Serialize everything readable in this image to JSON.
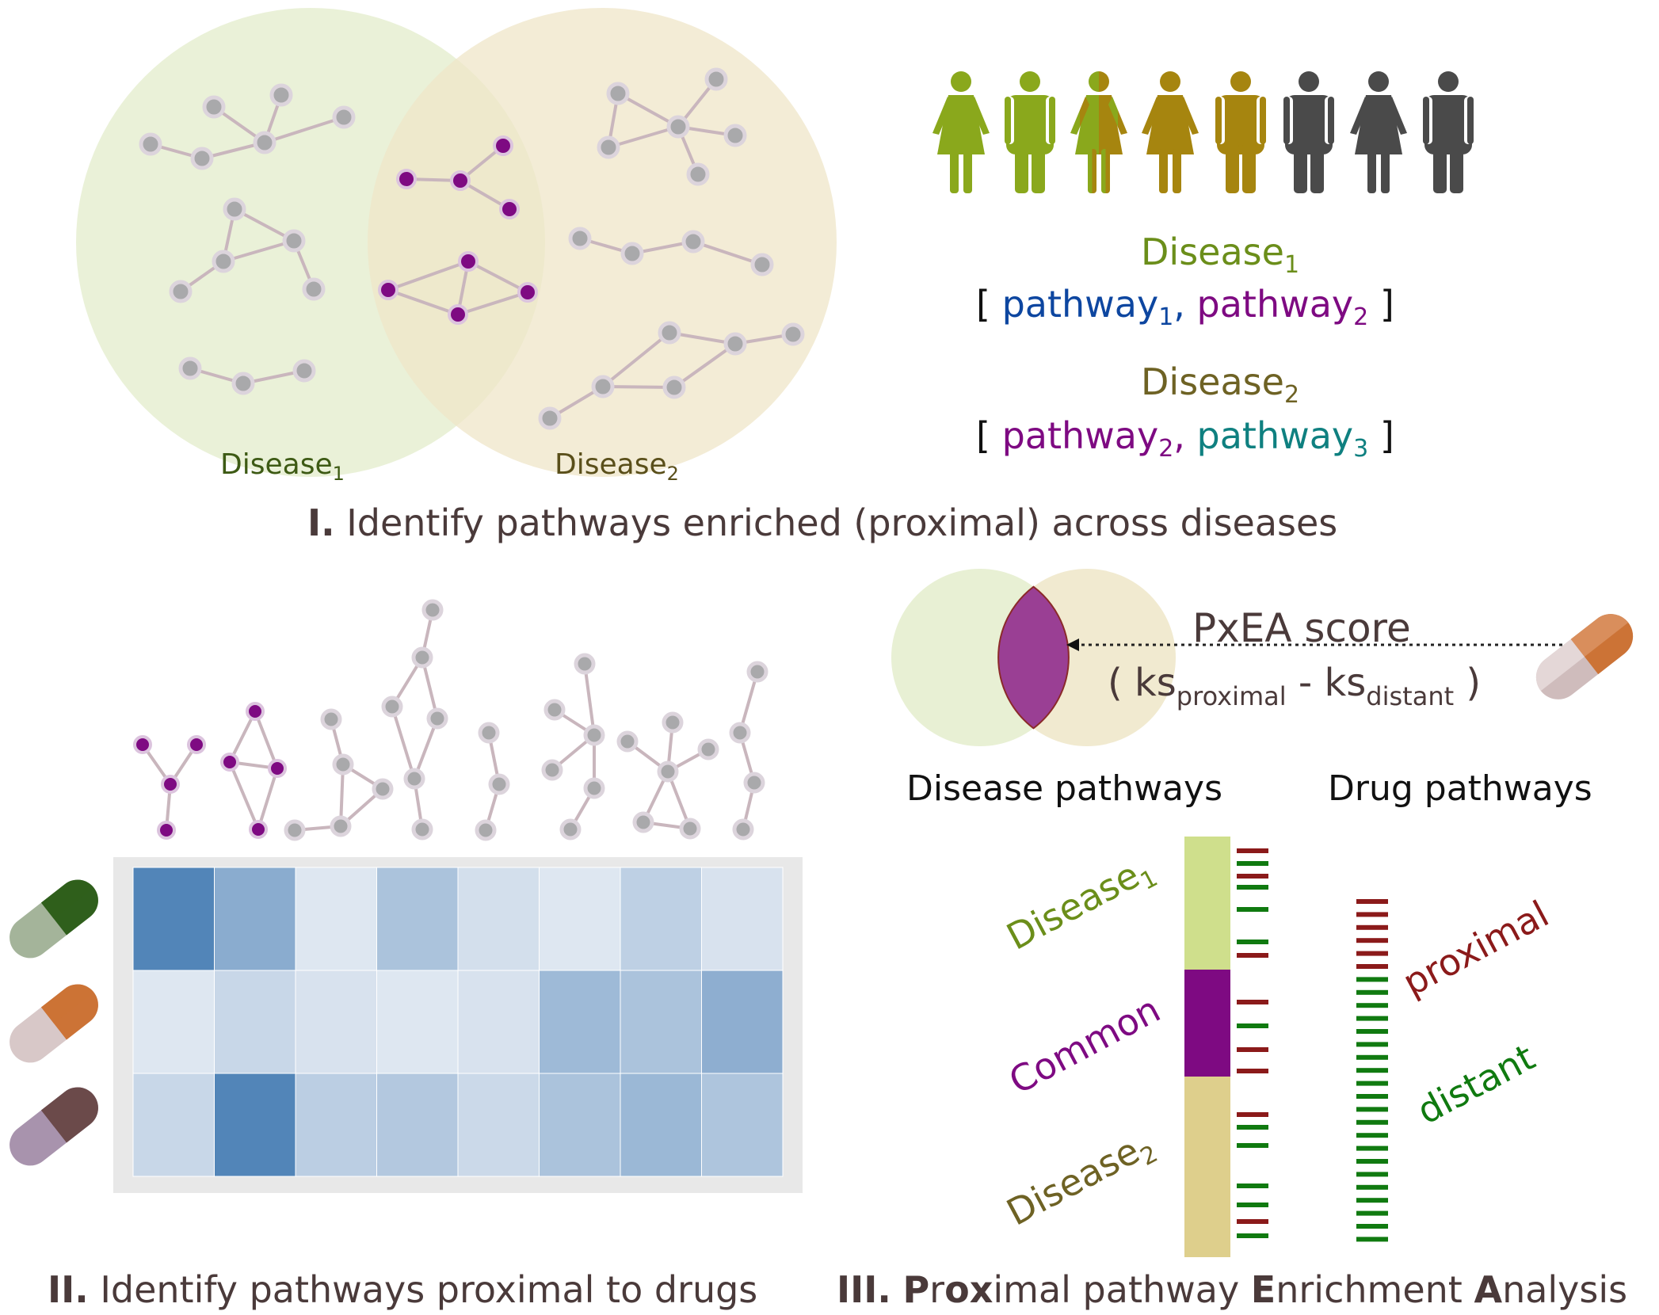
{
  "panel1": {
    "venn_left_label_main": "Disease",
    "venn_left_label_sub": "1",
    "venn_right_label_main": "Disease",
    "venn_right_label_sub": "2",
    "disease1_name": "Disease",
    "disease1_sub": "1",
    "disease1_list_open": "[ ",
    "disease1_path1": "pathway",
    "disease1_path1_sub": "1",
    "disease1_comma": ", ",
    "disease1_path2": "pathway",
    "disease1_path2_sub": "2",
    "disease1_list_close": " ]",
    "disease2_name": "Disease",
    "disease2_sub": "2",
    "disease2_list_open": "[ ",
    "disease2_path2": "pathway",
    "disease2_path2_sub": "2",
    "disease2_comma": ", ",
    "disease2_path3": "pathway",
    "disease2_path3_sub": "3",
    "disease2_list_close": " ]",
    "caption_numeral": "I.",
    "caption_text": " Identify pathways enriched (proximal) across diseases"
  },
  "panel2": {
    "caption_numeral": "II.",
    "caption_text": " Identify pathways proximal to drugs",
    "heatmap": {
      "rows": 3,
      "cols": 8,
      "values": [
        [
          0.95,
          0.6,
          0.08,
          0.4,
          0.15,
          0.08,
          0.28,
          0.12
        ],
        [
          0.08,
          0.22,
          0.12,
          0.08,
          0.12,
          0.48,
          0.4,
          0.58
        ],
        [
          0.22,
          0.95,
          0.3,
          0.35,
          0.2,
          0.4,
          0.5,
          0.38
        ]
      ]
    },
    "pill_colors": [
      "#2f5f1c",
      "#cc7336",
      "#6b4a4a"
    ]
  },
  "panel3": {
    "score_title": "PxEA score",
    "formula_open": "( ks",
    "formula_sub1": "proximal",
    "formula_minus": " - ks",
    "formula_sub2": "distant",
    "formula_close": " )",
    "disease_pathways_label": "Disease pathways",
    "drug_pathways_label": "Drug pathways",
    "bar_label_disease1_main": "Disease",
    "bar_label_disease1_sub": "1",
    "bar_label_common": "Common",
    "bar_label_disease2_main": "Disease",
    "bar_label_disease2_sub": "2",
    "label_proximal": "proximal",
    "label_distant": "distant",
    "caption_numeral": "III.",
    "caption_P": "P",
    "caption_r": "r",
    "caption_o": "o",
    "caption_x": "x",
    "caption_imal": "imal pathway ",
    "caption_E": "E",
    "caption_nrichment": "nrichment ",
    "caption_A": "A",
    "caption_nalysis": "nalysis"
  },
  "colors": {
    "disease1": "#6b8e1a",
    "disease2": "#6e6224",
    "pathway1": "#0d46a0",
    "pathway2": "#7e0a82",
    "pathway3": "#0f8080",
    "proximal": "#8b1a1a",
    "distant": "#107a10",
    "caption": "#4a3a3a",
    "heat_max": "#4a7fb5"
  }
}
